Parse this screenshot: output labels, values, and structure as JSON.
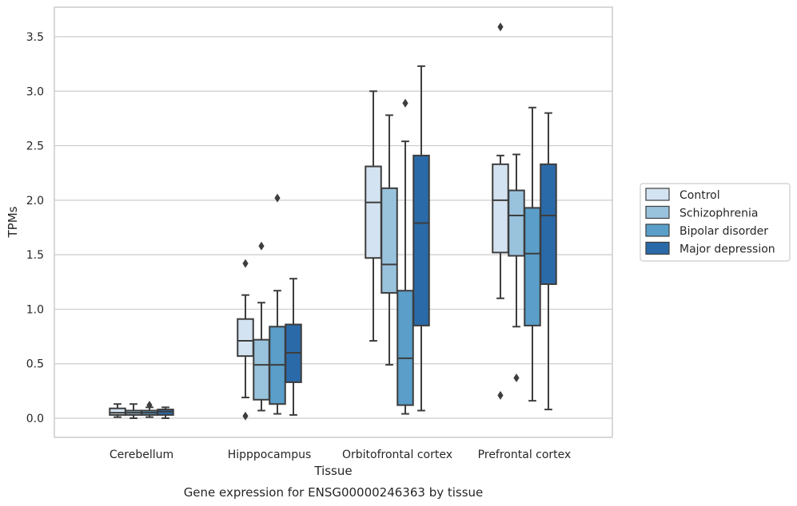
{
  "chart_data": {
    "type": "box",
    "caption": "Gene expression for ENSG00000246363 by tissue",
    "xlabel": "Tissue",
    "ylabel": "TPMs",
    "ylim": [
      -0.18,
      3.78
    ],
    "yticks": [
      0.0,
      0.5,
      1.0,
      1.5,
      2.0,
      2.5,
      3.0,
      3.5
    ],
    "ytick_labels": [
      "0.0",
      "0.5",
      "1.0",
      "1.5",
      "2.0",
      "2.5",
      "3.0",
      "3.5"
    ],
    "grid": "horizontal",
    "legend_position": "right",
    "categories": [
      "Cerebellum",
      "Hipppocampus",
      "Orbitofrontal cortex",
      "Prefrontal cortex"
    ],
    "series": [
      {
        "name": "Control",
        "color": "#d4e3f2",
        "boxes": [
          {
            "whislo": 0.01,
            "q1": 0.03,
            "med": 0.05,
            "q3": 0.09,
            "whishi": 0.13,
            "fliers": []
          },
          {
            "whislo": 0.19,
            "q1": 0.57,
            "med": 0.71,
            "q3": 0.91,
            "whishi": 1.13,
            "fliers": [
              1.42,
              0.02
            ]
          },
          {
            "whislo": 0.71,
            "q1": 1.47,
            "med": 1.98,
            "q3": 2.31,
            "whishi": 3.0,
            "fliers": []
          },
          {
            "whislo": 1.1,
            "q1": 1.52,
            "med": 2.0,
            "q3": 2.33,
            "whishi": 2.41,
            "fliers": [
              3.59,
              0.21
            ]
          }
        ]
      },
      {
        "name": "Schizophrenia",
        "color": "#99c3dd",
        "boxes": [
          {
            "whislo": 0.0,
            "q1": 0.03,
            "med": 0.05,
            "q3": 0.07,
            "whishi": 0.13,
            "fliers": []
          },
          {
            "whislo": 0.07,
            "q1": 0.17,
            "med": 0.49,
            "q3": 0.72,
            "whishi": 1.06,
            "fliers": [
              1.58
            ]
          },
          {
            "whislo": 0.49,
            "q1": 1.15,
            "med": 1.41,
            "q3": 2.11,
            "whishi": 2.78,
            "fliers": []
          },
          {
            "whislo": 0.84,
            "q1": 1.49,
            "med": 1.86,
            "q3": 2.09,
            "whishi": 2.42,
            "fliers": [
              0.37
            ]
          }
        ]
      },
      {
        "name": "Bipolar disorder",
        "color": "#5a9ec9",
        "boxes": [
          {
            "whislo": 0.01,
            "q1": 0.03,
            "med": 0.05,
            "q3": 0.07,
            "whishi": 0.1,
            "fliers": [
              0.12
            ]
          },
          {
            "whislo": 0.04,
            "q1": 0.13,
            "med": 0.49,
            "q3": 0.84,
            "whishi": 1.17,
            "fliers": [
              2.02
            ]
          },
          {
            "whislo": 0.04,
            "q1": 0.12,
            "med": 0.55,
            "q3": 1.17,
            "whishi": 2.54,
            "fliers": [
              2.89
            ]
          },
          {
            "whislo": 0.16,
            "q1": 0.85,
            "med": 1.51,
            "q3": 1.93,
            "whishi": 2.85,
            "fliers": []
          }
        ]
      },
      {
        "name": "Major depression",
        "color": "#2b6aa8",
        "boxes": [
          {
            "whislo": 0.0,
            "q1": 0.03,
            "med": 0.06,
            "q3": 0.08,
            "whishi": 0.1,
            "fliers": []
          },
          {
            "whislo": 0.03,
            "q1": 0.33,
            "med": 0.6,
            "q3": 0.86,
            "whishi": 1.28,
            "fliers": []
          },
          {
            "whislo": 0.07,
            "q1": 0.85,
            "med": 1.79,
            "q3": 2.41,
            "whishi": 3.23,
            "fliers": []
          },
          {
            "whislo": 0.08,
            "q1": 1.23,
            "med": 1.86,
            "q3": 2.33,
            "whishi": 2.8,
            "fliers": []
          }
        ]
      }
    ]
  }
}
